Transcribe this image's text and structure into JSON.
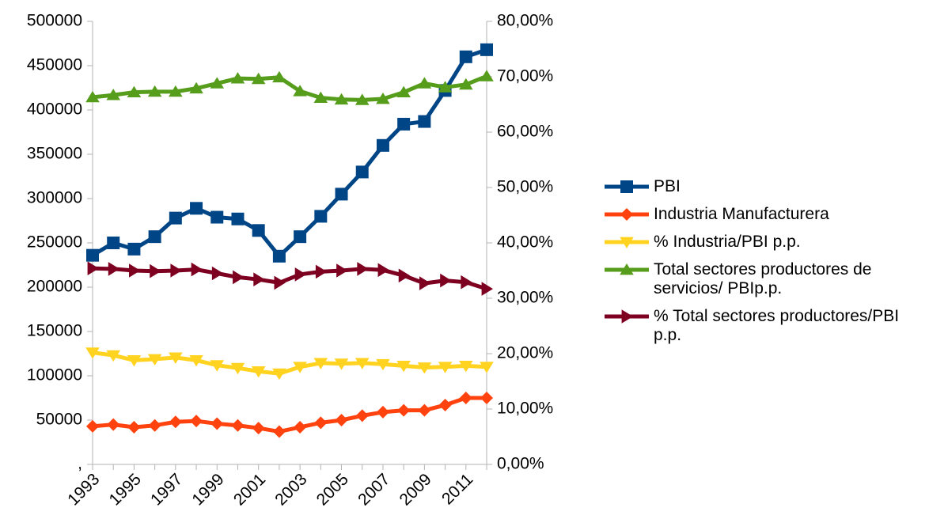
{
  "chart_data": {
    "type": "line",
    "categories": [
      "1993",
      null,
      "1995",
      null,
      "1997",
      null,
      "1999",
      null,
      "2001",
      null,
      "2003",
      null,
      "2005",
      null,
      "2007",
      null,
      "2009",
      null,
      "2011",
      null
    ],
    "ylim": [
      0,
      500000
    ],
    "yticks": [
      {
        "value": 0,
        "label": ","
      },
      50000,
      100000,
      150000,
      200000,
      250000,
      300000,
      350000,
      400000,
      450000,
      500000
    ],
    "y2lim": [
      0,
      80
    ],
    "y2ticks": [
      {
        "value": 0,
        "label": "0,00%"
      },
      {
        "value": 10,
        "label": "10,00%"
      },
      {
        "value": 20,
        "label": "20,00%"
      },
      {
        "value": 30,
        "label": "30,00%"
      },
      {
        "value": 40,
        "label": "40,00%"
      },
      {
        "value": 50,
        "label": "50,00%"
      },
      {
        "value": 60,
        "label": "60,00%"
      },
      {
        "value": 70,
        "label": "70,00%"
      },
      {
        "value": 80,
        "label": "80,00%"
      }
    ],
    "grid": false,
    "legend": "right",
    "series": [
      {
        "name": "PBI",
        "color": "#004586",
        "marker": "square",
        "values": [
          236000,
          250000,
          243000,
          257000,
          278000,
          289000,
          279000,
          277000,
          264000,
          235000,
          257000,
          280000,
          305000,
          330000,
          360000,
          384000,
          387000,
          422000,
          460000,
          468000
        ]
      },
      {
        "name": "Industria Manufacturera",
        "color": "#ff420e",
        "marker": "diamond",
        "values": [
          43000,
          45000,
          42000,
          44000,
          48000,
          49000,
          46000,
          44000,
          41000,
          37000,
          42000,
          47000,
          50000,
          55000,
          59000,
          61000,
          61000,
          67000,
          75000,
          75000
        ]
      },
      {
        "name": "% Industria/PBI p.p.",
        "color": "#ffd320",
        "marker": "triangle-down",
        "axis": "y2",
        "values": [
          20.2,
          19.7,
          18.8,
          19.0,
          19.3,
          18.8,
          17.9,
          17.4,
          16.8,
          16.4,
          17.6,
          18.3,
          18.2,
          18.3,
          18.1,
          17.8,
          17.5,
          17.6,
          17.8,
          17.6
        ]
      },
      {
        "name": "Total sectores productores de servicios/ PBIp.p.",
        "color": "#579d1c",
        "marker": "triangle-up",
        "axis": "y2",
        "values": [
          66.3,
          66.7,
          67.2,
          67.3,
          67.3,
          67.9,
          68.8,
          69.7,
          69.6,
          69.9,
          67.4,
          66.2,
          65.9,
          65.8,
          66.0,
          67.2,
          68.8,
          68.1,
          68.6,
          70.1
        ]
      },
      {
        "name": "% Total sectores productores/PBI p.p.",
        "color": "#7e0021",
        "marker": "triangle-right",
        "axis": "y2",
        "values": [
          35.4,
          35.3,
          35.0,
          34.9,
          35.0,
          35.2,
          34.5,
          33.8,
          33.4,
          32.8,
          34.3,
          34.8,
          35.0,
          35.3,
          35.1,
          34.1,
          32.7,
          33.2,
          32.9,
          31.7
        ]
      }
    ]
  }
}
